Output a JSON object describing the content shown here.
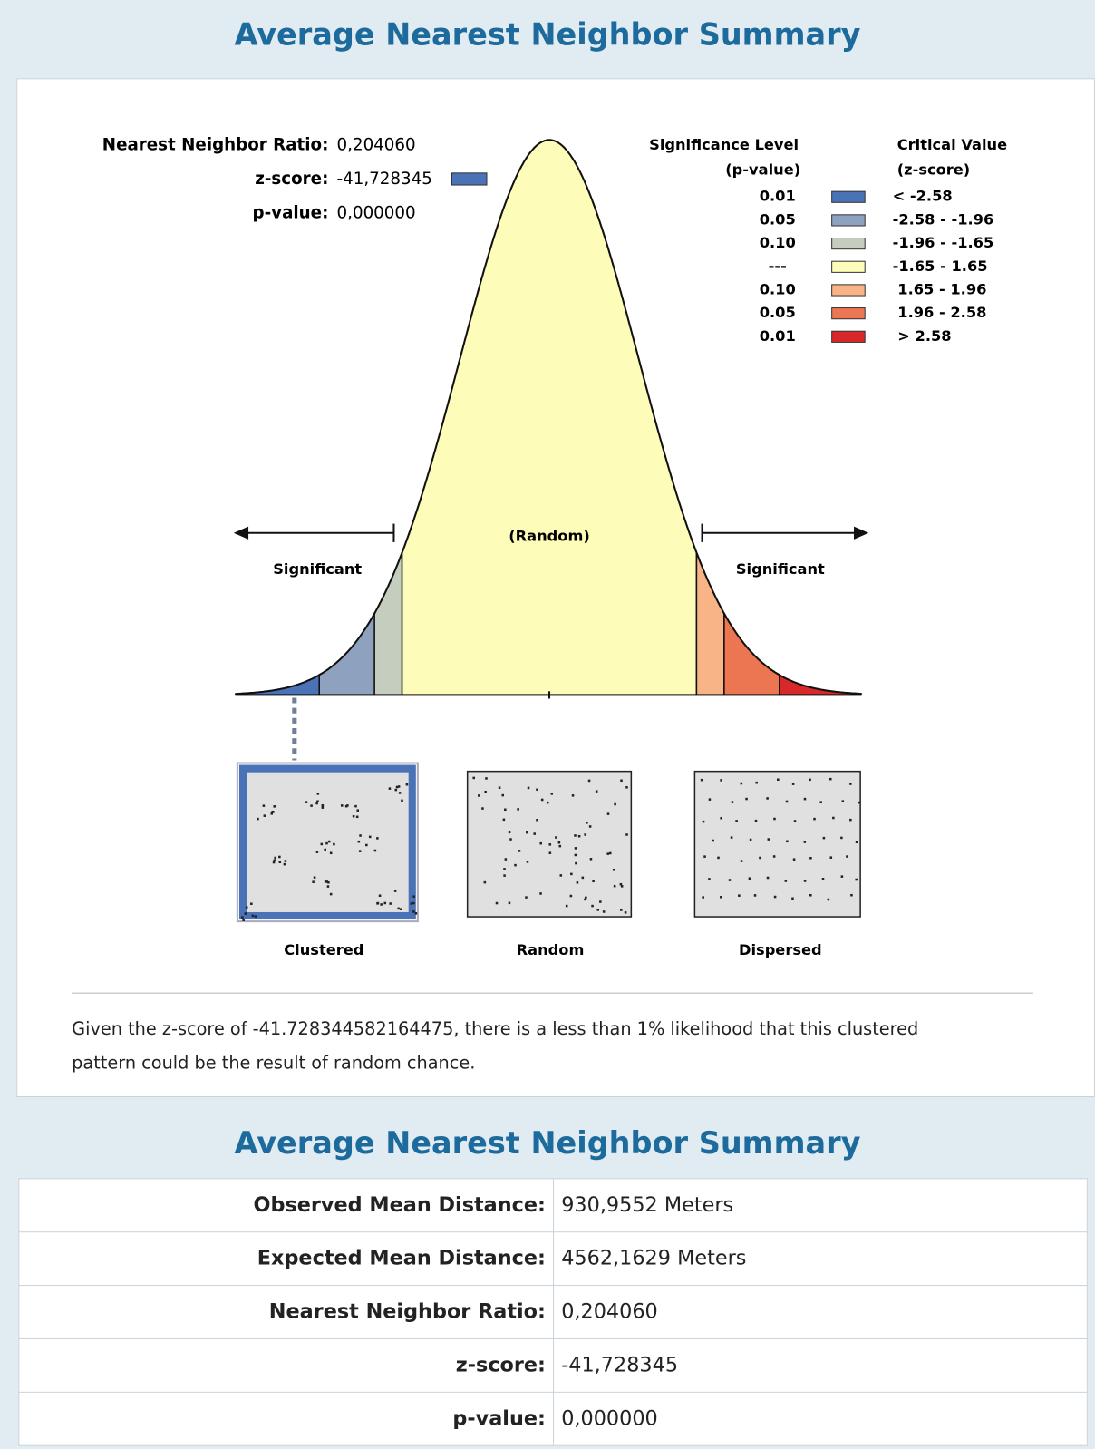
{
  "summary_graphic": {
    "title": "Average Nearest Neighbor Summary",
    "stats": [
      {
        "label": "Nearest Neighbor Ratio:",
        "value": "0,204060"
      },
      {
        "label": "z-score:",
        "value": "-41,728345"
      },
      {
        "label": "p-value:",
        "value": "0,000000"
      }
    ],
    "legend": {
      "significance_header": [
        "Significance Level",
        "(p-value)"
      ],
      "critical_header": [
        "Critical Value",
        "(z-score)"
      ],
      "rows": [
        {
          "p": "0.01",
          "z": "< -2.58",
          "color": "#4a72b6"
        },
        {
          "p": "0.05",
          "z": "-2.58 - -1.96",
          "color": "#8ea2c0"
        },
        {
          "p": "0.10",
          "z": "-1.96 - -1.65",
          "color": "#c5cdbf"
        },
        {
          "p": "---",
          "z": "-1.65 - 1.65",
          "color": "#fdfcb8"
        },
        {
          "p": "0.10",
          "z": " 1.65 - 1.96",
          "color": "#f8b486"
        },
        {
          "p": "0.05",
          "z": " 1.96 - 2.58",
          "color": "#ec7652"
        },
        {
          "p": "0.01",
          "z": " > 2.58",
          "color": "#d8292a"
        }
      ]
    },
    "curve_labels": {
      "random": "(Random)",
      "significant_left": "Significant",
      "significant_right": "Significant"
    },
    "patterns": [
      "Clustered",
      "Random",
      "Dispersed"
    ],
    "conclusion": "Given the z-score of -41.728344582164475, there is a less than 1% likelihood that this clustered pattern could be the result of random chance."
  },
  "table": {
    "title": "Average Nearest Neighbor Summary",
    "rows": [
      [
        "Observed Mean Distance:",
        "930,9552 Meters"
      ],
      [
        "Expected Mean Distance:",
        "4562,1629 Meters"
      ],
      [
        "Nearest Neighbor Ratio:",
        "0,204060"
      ],
      [
        "z-score:",
        "-41,728345"
      ],
      [
        "p-value:",
        "0,000000"
      ]
    ]
  }
}
